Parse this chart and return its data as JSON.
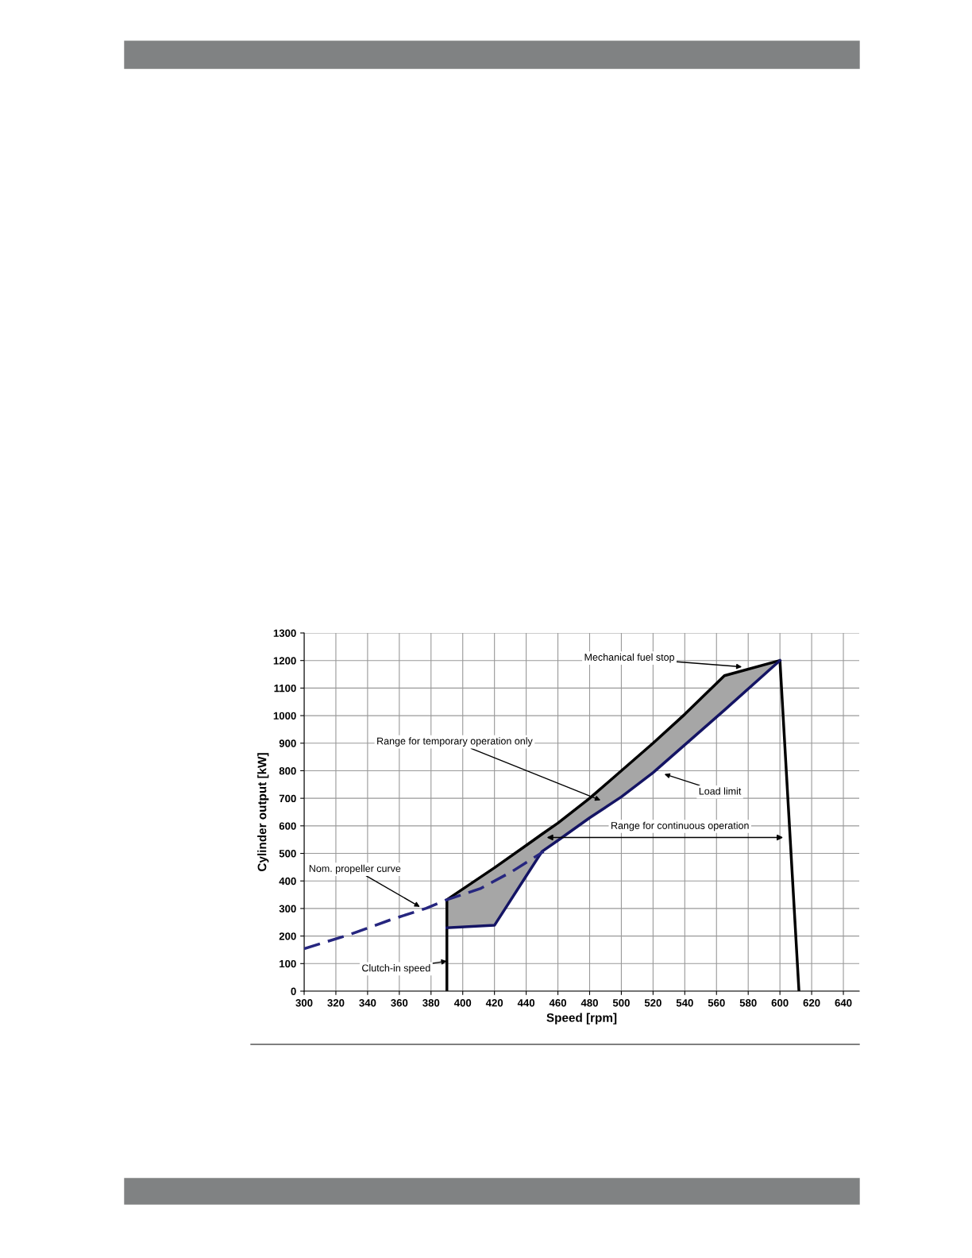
{
  "chart_data": {
    "type": "line",
    "xlabel": "Speed [rpm]",
    "ylabel": "Cylinder output [kW]",
    "xlim": [
      300,
      650
    ],
    "xticks": [
      300,
      320,
      340,
      360,
      380,
      400,
      420,
      440,
      460,
      480,
      500,
      520,
      540,
      560,
      580,
      600,
      620,
      640
    ],
    "ylim": [
      0,
      1300
    ],
    "yticks": [
      0,
      100,
      200,
      300,
      400,
      500,
      600,
      700,
      800,
      900,
      1000,
      1100,
      1200,
      1300
    ],
    "grid": true,
    "legend": false,
    "series": [
      {
        "color": "#000000",
        "line_style": "solid",
        "x": [
          390,
          390,
          420,
          440,
          450,
          460,
          480,
          500,
          520,
          540,
          565,
          600,
          612
        ],
        "values": [
          0,
          332,
          448,
          529,
          570,
          610,
          700,
          800,
          900,
          1005,
          1145,
          1200,
          0
        ],
        "lower": [
          null,
          230,
          239,
          418,
          507,
          547,
          629,
          705,
          793,
          894,
          1020,
          1200,
          null
        ],
        "upper": [
          null,
          332,
          448,
          529,
          570,
          610,
          700,
          800,
          900,
          1005,
          1145,
          1200,
          null
        ]
      },
      {
        "color": "#141464",
        "line_style": "solid",
        "x": [
          390,
          420,
          440,
          450,
          460,
          480,
          500,
          520,
          540,
          565,
          600
        ],
        "values": [
          230,
          239,
          418,
          507,
          547,
          629,
          705,
          793,
          894,
          1020,
          1200
        ]
      },
      {
        "color": "#26267f",
        "line_style": "dashed",
        "x": [
          300,
          329,
          354,
          377,
          390,
          411,
          431,
          451
        ],
        "values": [
          154,
          206,
          258,
          301,
          332,
          372,
          434,
          507
        ]
      }
    ],
    "annotations": [
      {
        "text": "Mechanical fuel stop",
        "x": 576,
        "y": 1177
      },
      "Range for temporary operation only",
      "Load limit",
      "Range for continuous operation",
      {
        "text": "Nom. propeller curve",
        "x": 373,
        "y": 306
      },
      {
        "text": "Clutch-in speed",
        "x": 390,
        "y": 109
      }
    ]
  }
}
